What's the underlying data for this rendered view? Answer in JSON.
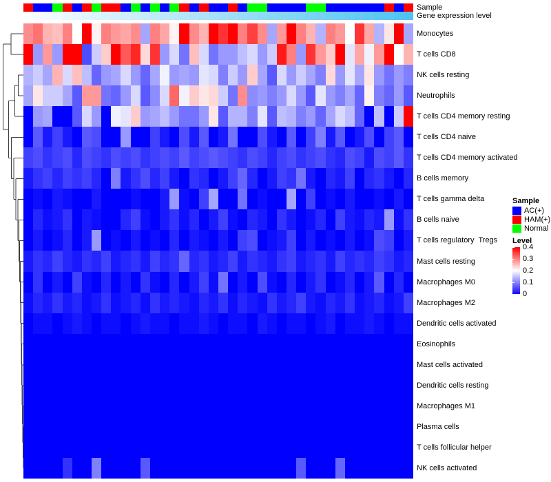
{
  "annotations": {
    "sample_label": "Sample",
    "gene_label": "Gene expression level"
  },
  "annotation_colors": {
    "AC": "#0000ff",
    "HAM": "#ff0000",
    "Normal": "#00ff00"
  },
  "gene_gradient": {
    "start": "#fbfeff",
    "end": "#4fc4f0"
  },
  "legend": {
    "sample_title": "Sample",
    "items": [
      {
        "key": "AC",
        "label": "AC(+)",
        "color": "#0000ff"
      },
      {
        "key": "HAM",
        "label": "HAM(+)",
        "color": "#ff0000"
      },
      {
        "key": "Normal",
        "label": "Normal",
        "color": "#00ff00"
      }
    ],
    "level_title": "Level",
    "level_ticks": [
      "0.4",
      "0.3",
      "0.2",
      "0.1",
      "0"
    ],
    "level_colors": {
      "high": "#ff0000",
      "mid": "#ffffff",
      "low": "#1508fa"
    }
  },
  "chart_data": {
    "type": "heatmap",
    "title": "",
    "n_columns": 40,
    "colormap": {
      "min": 0,
      "mid": 0.2,
      "max": 0.4,
      "min_color": "#0000ff",
      "mid_color": "#ffffff",
      "max_color": "#ff0000"
    },
    "column_annotation_sample": [
      "HAM",
      "AC",
      "AC",
      "Normal",
      "HAM",
      "AC",
      "HAM",
      "Normal",
      "HAM",
      "HAM",
      "AC",
      "Normal",
      "AC",
      "Normal",
      "AC",
      "Normal",
      "HAM",
      "AC",
      "HAM",
      "AC",
      "AC",
      "HAM",
      "AC",
      "Normal",
      "Normal",
      "AC",
      "AC",
      "AC",
      "AC",
      "Normal",
      "Normal",
      "AC",
      "AC",
      "AC",
      "AC",
      "AC",
      "AC",
      "HAM",
      "AC",
      "HAM"
    ],
    "rows": [
      "Monocytes",
      "T cells CD8",
      "NK cells resting",
      "Neutrophils",
      "T cells CD4 memory resting",
      "T cells CD4 naive",
      "T cells CD4 memory activated",
      "B cells memory",
      "T cells gamma delta",
      "B cells naive",
      "T cells regulatory  Tregs",
      "Mast cells resting",
      "Macrophages M0",
      "Macrophages M2",
      "Dendritic cells activated",
      "Eosinophils",
      "Mast cells activated",
      "Dendritic cells resting",
      "Macrophages M1",
      "Plasma cells",
      "T cells follicular helper",
      "NK cells activated"
    ],
    "values": [
      [
        0.29,
        0.31,
        0.26,
        0.25,
        0.3,
        0.2,
        0.4,
        0.21,
        0.3,
        0.28,
        0.27,
        0.29,
        0.13,
        0.3,
        0.27,
        0.21,
        0.4,
        0.29,
        0.26,
        0.4,
        0.36,
        0.4,
        0.3,
        0.35,
        0.29,
        0.13,
        0.28,
        0.4,
        0.3,
        0.26,
        0.14,
        0.3,
        0.28,
        0.2,
        0.36,
        0.27,
        0.14,
        0.22,
        0.4,
        0.13
      ],
      [
        0.4,
        0.12,
        0.28,
        0.12,
        0.4,
        0.4,
        0.06,
        0.16,
        0.24,
        0.4,
        0.33,
        0.37,
        0.23,
        0.36,
        0.12,
        0.17,
        0.09,
        0.25,
        0.17,
        0.09,
        0.12,
        0.12,
        0.15,
        0.17,
        0.12,
        0.16,
        0.38,
        0.3,
        0.12,
        0.36,
        0.28,
        0.24,
        0.4,
        0.18,
        0.27,
        0.19,
        0.28,
        0.4,
        0.2,
        0.26
      ],
      [
        0.14,
        0.16,
        0.13,
        0.26,
        0.17,
        0.25,
        0.15,
        0.08,
        0.12,
        0.13,
        0.17,
        0.12,
        0.08,
        0.13,
        0.19,
        0.12,
        0.13,
        0.12,
        0.18,
        0.17,
        0.1,
        0.16,
        0.12,
        0.24,
        0.13,
        0.07,
        0.17,
        0.12,
        0.16,
        0.13,
        0.1,
        0.23,
        0.12,
        0.18,
        0.13,
        0.22,
        0.12,
        0.09,
        0.12,
        0.1
      ],
      [
        0.13,
        0.22,
        0.16,
        0.16,
        0.13,
        0.07,
        0.28,
        0.28,
        0.09,
        0.08,
        0.12,
        0.17,
        0.07,
        0.11,
        0.17,
        0.32,
        0.19,
        0.24,
        0.22,
        0.23,
        0.16,
        0.09,
        0.29,
        0.11,
        0.12,
        0.1,
        0.12,
        0.17,
        0.12,
        0.07,
        0.18,
        0.12,
        0.1,
        0.13,
        0.08,
        0.21,
        0.1,
        0.08,
        0.12,
        0.07
      ],
      [
        0.0,
        0.12,
        0.13,
        0.0,
        0.0,
        0.07,
        0.17,
        0.12,
        0.0,
        0.19,
        0.18,
        0.24,
        0.12,
        0.13,
        0.15,
        0.12,
        0.09,
        0.09,
        0.12,
        0.22,
        0.07,
        0.14,
        0.14,
        0.1,
        0.18,
        0.07,
        0.15,
        0.14,
        0.1,
        0.12,
        0.08,
        0.13,
        0.17,
        0.15,
        0.08,
        0.0,
        0.15,
        0.0,
        0.16,
        0.4
      ],
      [
        0.0,
        0.07,
        0.02,
        0.05,
        0.02,
        0.0,
        0.07,
        0.06,
        0.0,
        0.0,
        0.12,
        0.0,
        0.0,
        0.05,
        0.02,
        0.0,
        0.06,
        0.02,
        0.07,
        0.0,
        0.02,
        0.09,
        0.0,
        0.0,
        0.06,
        0.02,
        0.0,
        0.07,
        0.0,
        0.05,
        0.1,
        0.02,
        0.07,
        0.0,
        0.02,
        0.06,
        0.0,
        0.05,
        0.07,
        0.0
      ],
      [
        0.05,
        0.06,
        0.04,
        0.05,
        0.06,
        0.03,
        0.06,
        0.05,
        0.04,
        0.06,
        0.05,
        0.06,
        0.04,
        0.05,
        0.06,
        0.05,
        0.07,
        0.05,
        0.06,
        0.07,
        0.06,
        0.05,
        0.04,
        0.06,
        0.05,
        0.03,
        0.05,
        0.06,
        0.04,
        0.05,
        0.06,
        0.04,
        0.03,
        0.06,
        0.05,
        0.02,
        0.06,
        0.05,
        0.07,
        0.04
      ],
      [
        0.02,
        0.04,
        0.05,
        0.03,
        0.05,
        0.04,
        0.05,
        0.03,
        0.0,
        0.1,
        0.02,
        0.04,
        0.06,
        0.03,
        0.05,
        0.02,
        0.0,
        0.04,
        0.03,
        0.0,
        0.02,
        0.05,
        0.08,
        0.03,
        0.0,
        0.02,
        0.05,
        0.04,
        0.09,
        0.02,
        0.0,
        0.03,
        0.02,
        0.05,
        0.0,
        0.03,
        0.04,
        0.02,
        0.0,
        0.03
      ],
      [
        0.0,
        0.01,
        0.0,
        0.02,
        0.01,
        0.0,
        0.0,
        0.02,
        0.0,
        0.0,
        0.0,
        0.01,
        0.0,
        0.0,
        0.02,
        0.12,
        0.01,
        0.0,
        0.05,
        0.13,
        0.0,
        0.0,
        0.09,
        0.0,
        0.01,
        0.0,
        0.0,
        0.13,
        0.0,
        0.05,
        0.0,
        0.01,
        0.0,
        0.02,
        0.0,
        0.0,
        0.01,
        0.0,
        0.02,
        0.0
      ],
      [
        0.0,
        0.03,
        0.01,
        0.02,
        0.04,
        0.0,
        0.02,
        0.01,
        0.0,
        0.0,
        0.03,
        0.05,
        0.01,
        0.0,
        0.02,
        0.04,
        0.01,
        0.03,
        0.0,
        0.02,
        0.05,
        0.01,
        0.0,
        0.03,
        0.02,
        0.0,
        0.04,
        0.02,
        0.0,
        0.01,
        0.03,
        0.0,
        0.05,
        0.02,
        0.01,
        0.03,
        0.02,
        0.12,
        0.01,
        0.04
      ],
      [
        0.0,
        0.02,
        0.0,
        0.01,
        0.03,
        0.0,
        0.02,
        0.12,
        0.0,
        0.01,
        0.0,
        0.02,
        0.0,
        0.01,
        0.0,
        0.03,
        0.0,
        0.02,
        0.01,
        0.0,
        0.02,
        0.0,
        0.05,
        0.06,
        0.0,
        0.01,
        0.02,
        0.05,
        0.0,
        0.02,
        0.0,
        0.01,
        0.0,
        0.02,
        0.0,
        0.01,
        0.06,
        0.05,
        0.0,
        0.02
      ],
      [
        0.02,
        0.04,
        0.03,
        0.05,
        0.03,
        0.02,
        0.04,
        0.03,
        0.05,
        0.02,
        0.03,
        0.04,
        0.02,
        0.05,
        0.03,
        0.04,
        0.08,
        0.03,
        0.04,
        0.02,
        0.03,
        0.05,
        0.02,
        0.04,
        0.03,
        0.02,
        0.04,
        0.05,
        0.02,
        0.03,
        0.04,
        0.02,
        0.05,
        0.03,
        0.04,
        0.03,
        0.05,
        0.04,
        0.02,
        0.03
      ],
      [
        0.0,
        0.04,
        0.0,
        0.02,
        0.0,
        0.05,
        0.01,
        0.0,
        0.03,
        0.0,
        0.02,
        0.0,
        0.04,
        0.01,
        0.0,
        0.03,
        0.0,
        0.02,
        0.05,
        0.01,
        0.09,
        0.0,
        0.02,
        0.0,
        0.06,
        0.01,
        0.0,
        0.03,
        0.0,
        0.02,
        0.04,
        0.0,
        0.01,
        0.03,
        0.0,
        0.02,
        0.07,
        0.0,
        0.03,
        0.0
      ],
      [
        0.01,
        0.03,
        0.02,
        0.04,
        0.02,
        0.03,
        0.01,
        0.02,
        0.04,
        0.01,
        0.02,
        0.03,
        0.01,
        0.04,
        0.02,
        0.03,
        0.02,
        0.01,
        0.03,
        0.02,
        0.04,
        0.01,
        0.03,
        0.02,
        0.01,
        0.04,
        0.02,
        0.03,
        0.05,
        0.02,
        0.01,
        0.03,
        0.02,
        0.04,
        0.01,
        0.02,
        0.03,
        0.01,
        0.02,
        0.05
      ],
      [
        0.0,
        0.01,
        0.01,
        0.0,
        0.01,
        0.02,
        0.01,
        0.0,
        0.01,
        0.01,
        0.0,
        0.01,
        0.02,
        0.01,
        0.01,
        0.0,
        0.01,
        0.01,
        0.02,
        0.01,
        0.0,
        0.01,
        0.01,
        0.0,
        0.02,
        0.01,
        0.0,
        0.01,
        0.01,
        0.0,
        0.01,
        0.02,
        0.0,
        0.01,
        0.01,
        0.02,
        0.01,
        0.0,
        0.01,
        0.01
      ],
      [
        0,
        0,
        0,
        0,
        0,
        0,
        0,
        0,
        0,
        0,
        0,
        0,
        0,
        0,
        0,
        0,
        0,
        0,
        0,
        0,
        0,
        0,
        0,
        0,
        0,
        0,
        0,
        0,
        0,
        0,
        0,
        0,
        0,
        0,
        0,
        0,
        0,
        0,
        0,
        0
      ],
      [
        0,
        0,
        0,
        0,
        0,
        0,
        0,
        0,
        0,
        0,
        0,
        0,
        0,
        0,
        0,
        0,
        0,
        0,
        0,
        0,
        0,
        0,
        0,
        0,
        0,
        0,
        0,
        0,
        0,
        0,
        0,
        0,
        0,
        0,
        0,
        0,
        0,
        0,
        0,
        0
      ],
      [
        0,
        0,
        0,
        0,
        0,
        0,
        0,
        0,
        0,
        0,
        0,
        0,
        0,
        0,
        0,
        0,
        0,
        0,
        0,
        0,
        0,
        0,
        0,
        0,
        0,
        0,
        0,
        0,
        0,
        0,
        0,
        0,
        0,
        0,
        0,
        0,
        0,
        0,
        0,
        0
      ],
      [
        0,
        0,
        0,
        0,
        0,
        0,
        0,
        0,
        0,
        0,
        0,
        0,
        0,
        0,
        0,
        0,
        0,
        0,
        0,
        0,
        0,
        0,
        0,
        0,
        0,
        0,
        0,
        0,
        0,
        0,
        0,
        0,
        0,
        0,
        0,
        0,
        0,
        0,
        0,
        0
      ],
      [
        0,
        0,
        0,
        0,
        0,
        0,
        0,
        0,
        0,
        0,
        0,
        0,
        0,
        0,
        0,
        0,
        0,
        0,
        0,
        0,
        0,
        0,
        0,
        0,
        0,
        0,
        0,
        0,
        0,
        0,
        0,
        0,
        0,
        0,
        0,
        0,
        0,
        0,
        0,
        0
      ],
      [
        0,
        0,
        0,
        0,
        0,
        0,
        0,
        0,
        0,
        0,
        0,
        0,
        0,
        0,
        0,
        0,
        0,
        0,
        0,
        0,
        0,
        0,
        0,
        0,
        0,
        0,
        0,
        0,
        0,
        0,
        0,
        0,
        0,
        0,
        0,
        0,
        0,
        0,
        0,
        0
      ],
      [
        0.0,
        0.0,
        0.0,
        0.0,
        0.04,
        0.0,
        0.0,
        0.1,
        0.0,
        0.0,
        0.0,
        0.0,
        0.07,
        0.0,
        0.0,
        0.0,
        0.0,
        0.0,
        0.0,
        0.0,
        0.0,
        0.0,
        0.0,
        0.0,
        0.0,
        0.0,
        0.0,
        0.0,
        0.07,
        0.0,
        0.0,
        0.0,
        0.08,
        0.0,
        0.0,
        0.0,
        0.0,
        0.0,
        0.0,
        0.0
      ]
    ]
  }
}
